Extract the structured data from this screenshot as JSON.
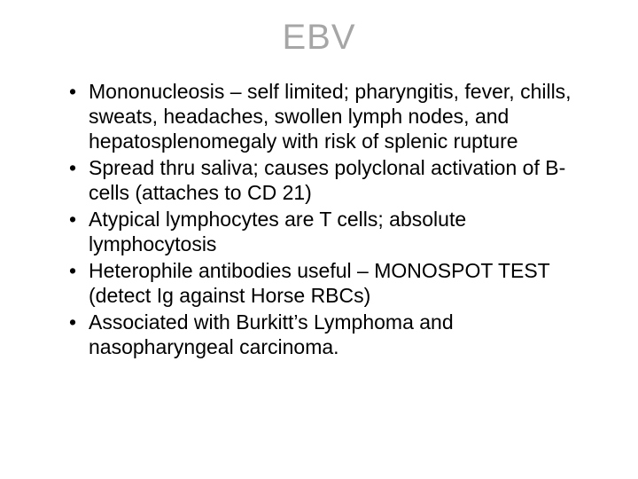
{
  "slide": {
    "title": "EBV",
    "title_color": "#a6a6a6",
    "title_fontsize": 40,
    "body_fontsize": 23,
    "body_color": "#000000",
    "background_color": "#ffffff",
    "bullets": [
      "Mononucleosis – self limited; pharyngitis, fever, chills, sweats, headaches, swollen lymph nodes, and hepatosplenomegaly with risk of splenic rupture",
      "Spread thru saliva; causes polyclonal activation of B-cells (attaches to CD 21)",
      "Atypical lymphocytes are T cells; absolute lymphocytosis",
      "Heterophile antibodies useful – MONOSPOT TEST (detect Ig against Horse RBCs)",
      "Associated with Burkitt’s Lymphoma and nasopharyngeal carcinoma."
    ]
  }
}
